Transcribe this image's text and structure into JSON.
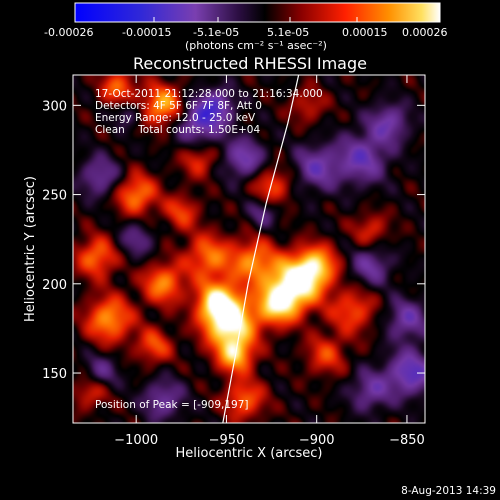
{
  "colorbar": {
    "tick_labels": [
      "-0.00026",
      "-0.00015",
      "-5.1e-05",
      "5.1e-05",
      "0.00015",
      "0.00026"
    ],
    "range": [
      -0.00026,
      0.00026
    ],
    "units_label": "(photons cm⁻² s⁻¹ asec⁻²)"
  },
  "chart_data": {
    "type": "heatmap",
    "title": "Reconstructed RHESSI Image",
    "xlabel": "Heliocentric X (arcsec)",
    "ylabel": "Heliocentric Y (arcsec)",
    "xlim": [
      -1035,
      -840
    ],
    "ylim": [
      122,
      317
    ],
    "x_ticks": [
      -1000,
      -950,
      -900,
      -850
    ],
    "x_tick_labels": [
      "−1000",
      "−950",
      "−900",
      "−850"
    ],
    "y_ticks": [
      150,
      200,
      250,
      300
    ],
    "y_tick_labels": [
      "150",
      "200",
      "250",
      "300"
    ],
    "limb_points": [
      [
        -952,
        122
      ],
      [
        -945,
        160
      ],
      [
        -938,
        200
      ],
      [
        -928,
        245
      ],
      [
        -916,
        290
      ],
      [
        -910,
        317
      ]
    ],
    "peak": [
      -909,
      197
    ],
    "info_lines": [
      "17-Oct-2011 21:12:28.000 to 21:16:34.000",
      "Detectors: 4F 5F 6F 7F 8F, Att 0",
      "Energy Range: 12.0 - 25.0 keV",
      "Clean    Total counts: 1.50E+04"
    ],
    "peak_label": "Position of Peak = [-909,197]",
    "blobs": [
      [
        -948,
        178,
        10,
        1.0
      ],
      [
        -955,
        190,
        8,
        0.8
      ],
      [
        -945,
        160,
        7,
        0.7
      ],
      [
        -912,
        200,
        10,
        1.0
      ],
      [
        -922,
        188,
        8,
        0.75
      ],
      [
        -900,
        210,
        8,
        0.7
      ],
      [
        -935,
        212,
        9,
        0.6
      ],
      [
        -960,
        215,
        9,
        0.55
      ],
      [
        -985,
        200,
        8,
        0.6
      ],
      [
        -1015,
        180,
        9,
        0.65
      ],
      [
        -1022,
        215,
        8,
        0.55
      ],
      [
        -1000,
        250,
        8,
        0.6
      ],
      [
        -985,
        300,
        8,
        0.7
      ],
      [
        -1010,
        310,
        7,
        0.5
      ],
      [
        -925,
        255,
        8,
        0.45
      ],
      [
        -880,
        185,
        9,
        0.45
      ],
      [
        -895,
        160,
        8,
        0.4
      ],
      [
        -870,
        230,
        7,
        0.35
      ],
      [
        -975,
        240,
        7,
        0.4
      ],
      [
        -940,
        135,
        8,
        0.5
      ],
      [
        -1025,
        140,
        7,
        0.4
      ],
      [
        -990,
        165,
        7,
        0.45
      ],
      [
        -965,
        270,
        7,
        0.4
      ],
      [
        -905,
        300,
        7,
        0.3
      ],
      [
        -965,
        290,
        9,
        -0.6
      ],
      [
        -940,
        270,
        8,
        -0.55
      ],
      [
        -955,
        300,
        7,
        -0.5
      ],
      [
        -900,
        265,
        9,
        -0.5
      ],
      [
        -875,
        270,
        10,
        -0.55
      ],
      [
        -860,
        290,
        8,
        -0.5
      ],
      [
        -870,
        210,
        8,
        -0.45
      ],
      [
        -850,
        180,
        8,
        -0.5
      ],
      [
        -848,
        150,
        9,
        -0.65
      ],
      [
        -870,
        140,
        8,
        -0.45
      ],
      [
        -1020,
        260,
        8,
        -0.45
      ],
      [
        -1000,
        225,
        7,
        -0.35
      ],
      [
        -1020,
        150,
        7,
        -0.4
      ],
      [
        -985,
        135,
        8,
        -0.45
      ],
      [
        -930,
        240,
        6,
        -0.35
      ],
      [
        -1005,
        295,
        5,
        -0.3
      ]
    ]
  },
  "footer": {
    "date": "8-Aug-2013 14:39"
  }
}
